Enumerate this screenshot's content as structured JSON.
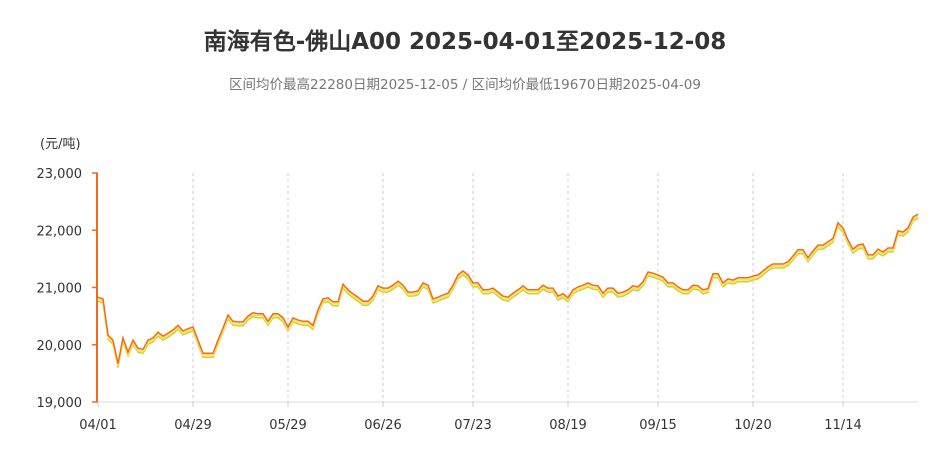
{
  "chart_data": {
    "type": "line",
    "title": "南海有色-佛山A00 2025-04-01至2025-12-08",
    "subtitle": "区间均价最高22280日期2025-12-05 / 区间均价最低19670日期2025-04-09",
    "ylabel": "(元/吨)",
    "ylim": [
      19000,
      23000
    ],
    "yticks": [
      "19,000",
      "20,000",
      "21,000",
      "22,000",
      "23,000"
    ],
    "ytick_values": [
      19000,
      20000,
      21000,
      22000,
      23000
    ],
    "xticks": [
      {
        "label": "04/01",
        "index": 0
      },
      {
        "label": "04/29",
        "index": 19
      },
      {
        "label": "05/29",
        "index": 38
      },
      {
        "label": "06/26",
        "index": 57
      },
      {
        "label": "07/23",
        "index": 75
      },
      {
        "label": "08/19",
        "index": 94
      },
      {
        "label": "09/15",
        "index": 112
      },
      {
        "label": "10/20",
        "index": 131
      },
      {
        "label": "11/14",
        "index": 149
      }
    ],
    "grid": "vertical dashed",
    "colors": {
      "line": "#f26b1d",
      "glow1": "#f7e36a",
      "glow2": "#c8d62a",
      "axis": "#f26b1d"
    },
    "values": [
      20830,
      20800,
      20170,
      20080,
      19670,
      20120,
      19870,
      20080,
      19940,
      19920,
      20080,
      20120,
      20220,
      20150,
      20200,
      20260,
      20340,
      20240,
      20280,
      20310,
      20080,
      19850,
      19850,
      19850,
      20080,
      20290,
      20520,
      20410,
      20400,
      20400,
      20500,
      20560,
      20540,
      20540,
      20410,
      20540,
      20540,
      20470,
      20310,
      20470,
      20430,
      20410,
      20410,
      20340,
      20610,
      20800,
      20820,
      20750,
      20750,
      21060,
      20960,
      20890,
      20830,
      20760,
      20760,
      20850,
      21030,
      20990,
      20990,
      21040,
      21110,
      21040,
      20920,
      20920,
      20940,
      21080,
      21040,
      20800,
      20830,
      20870,
      20900,
      21040,
      21220,
      21290,
      21220,
      21080,
      21080,
      20960,
      20960,
      20990,
      20920,
      20850,
      20830,
      20900,
      20960,
      21030,
      20960,
      20960,
      20960,
      21040,
      20990,
      20990,
      20850,
      20890,
      20820,
      20960,
      21010,
      21040,
      21080,
      21040,
      21030,
      20900,
      20990,
      20990,
      20900,
      20920,
      20960,
      21030,
      21010,
      21100,
      21270,
      21250,
      21220,
      21180,
      21080,
      21080,
      21010,
      20960,
      20960,
      21040,
      21030,
      20960,
      20980,
      21240,
      21240,
      21080,
      21150,
      21130,
      21170,
      21170,
      21170,
      21200,
      21220,
      21290,
      21360,
      21410,
      21410,
      21410,
      21450,
      21550,
      21660,
      21660,
      21520,
      21640,
      21740,
      21740,
      21800,
      21860,
      22130,
      22040,
      21830,
      21670,
      21740,
      21760,
      21570,
      21570,
      21670,
      21620,
      21690,
      21690,
      21990,
      21970,
      22040,
      22230,
      22280
    ]
  }
}
